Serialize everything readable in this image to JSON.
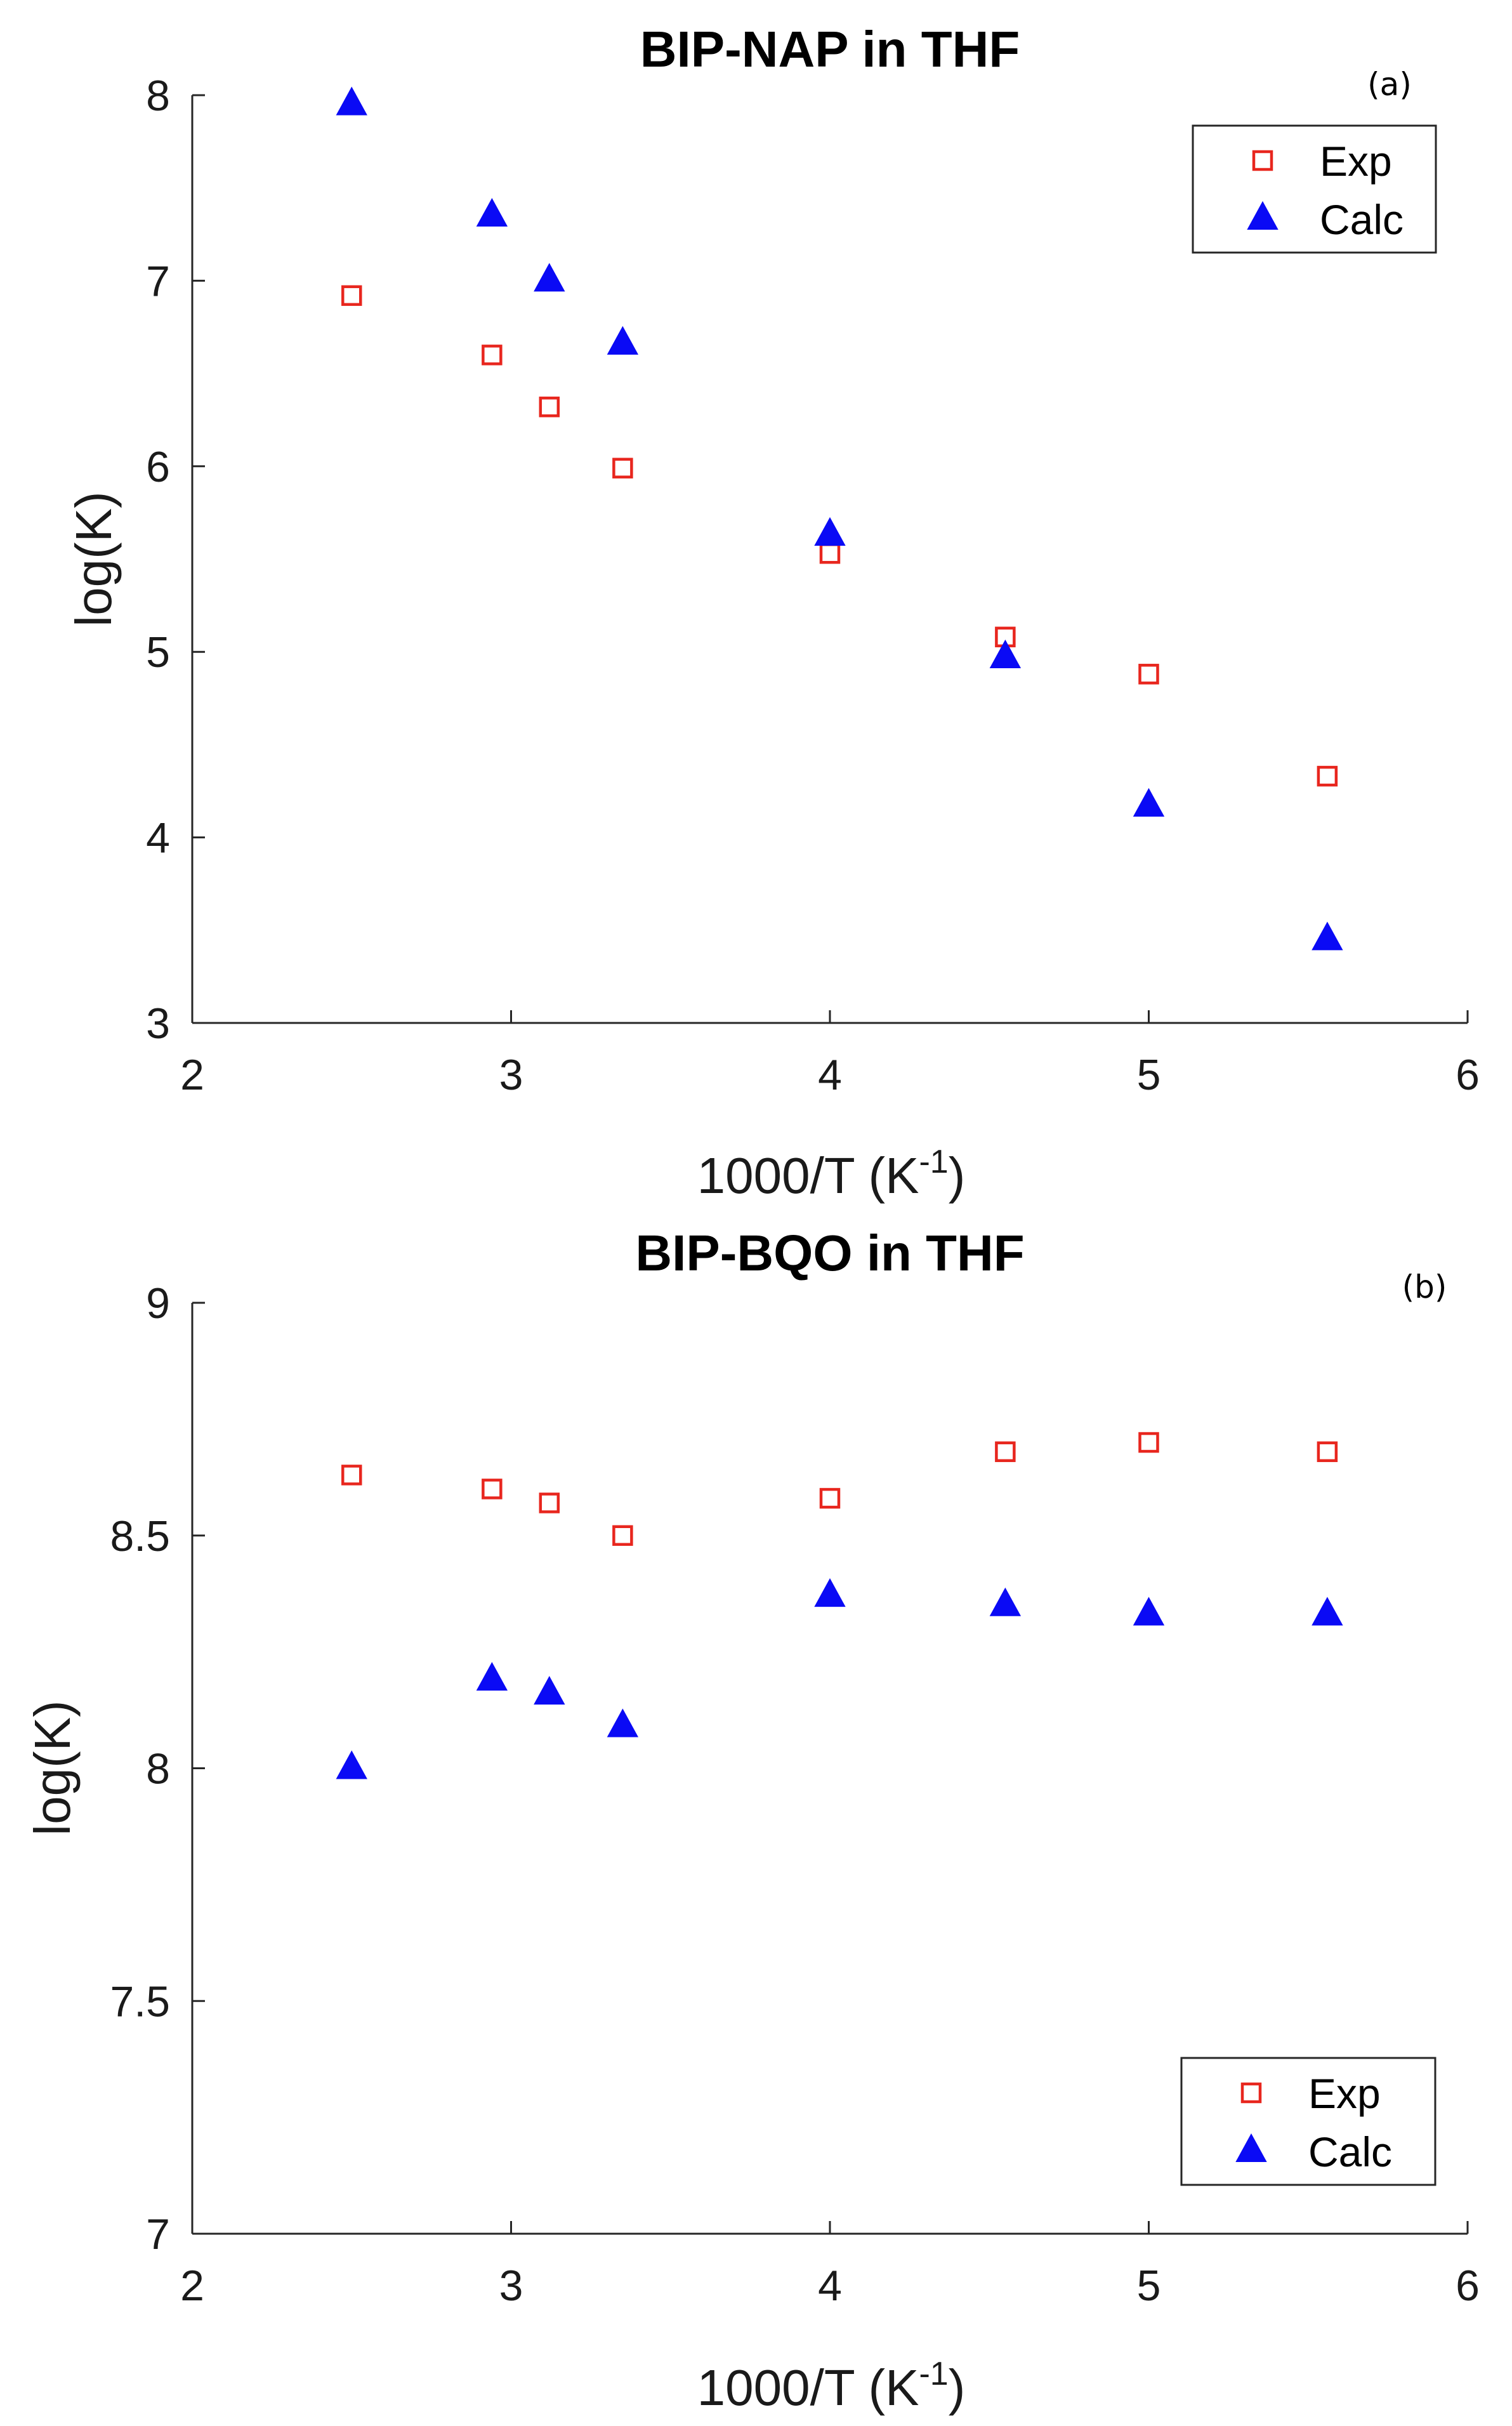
{
  "chart_data": [
    {
      "type": "scatter",
      "panel_label": "(a)",
      "title": "BIP-NAP in THF",
      "xlabel": "1000/T (K",
      "xlabel_sup": "-1",
      "xlabel_end": ")",
      "ylabel": "log(K)",
      "xlim": [
        2,
        6
      ],
      "ylim": [
        3,
        8
      ],
      "xticks": [
        "2",
        "3",
        "4",
        "5",
        "6"
      ],
      "yticks": [
        "3",
        "4",
        "5",
        "6",
        "7",
        "8"
      ],
      "legend_position": "top-right",
      "x": [
        2.5,
        2.94,
        3.12,
        3.35,
        4.0,
        4.55,
        5.0,
        5.56
      ],
      "series": [
        {
          "name": "Exp",
          "marker": "square",
          "color": "#e8261e",
          "values": [
            6.92,
            6.6,
            6.32,
            5.99,
            5.53,
            5.08,
            4.88,
            4.33
          ]
        },
        {
          "name": "Calc",
          "marker": "triangle",
          "color": "#0a0af5",
          "values": [
            7.95,
            7.35,
            7.0,
            6.66,
            5.63,
            4.97,
            4.17,
            3.45
          ]
        }
      ]
    },
    {
      "type": "scatter",
      "panel_label": "(b)",
      "title": "BIP-BQO in THF",
      "xlabel": "1000/T (K",
      "xlabel_sup": "-1",
      "xlabel_end": ")",
      "ylabel": "log(K)",
      "xlim": [
        2,
        6
      ],
      "ylim": [
        7,
        9
      ],
      "xticks": [
        "2",
        "3",
        "4",
        "5",
        "6"
      ],
      "yticks": [
        "7",
        "7.5",
        "8",
        "8.5",
        "9"
      ],
      "legend_position": "bottom-right",
      "x": [
        2.5,
        2.94,
        3.12,
        3.35,
        4.0,
        4.55,
        5.0,
        5.56
      ],
      "series": [
        {
          "name": "Exp",
          "marker": "square",
          "color": "#e8261e",
          "values": [
            8.63,
            8.6,
            8.57,
            8.5,
            8.58,
            8.68,
            8.7,
            8.68
          ]
        },
        {
          "name": "Calc",
          "marker": "triangle",
          "color": "#0a0af5",
          "values": [
            8.0,
            8.19,
            8.16,
            8.09,
            8.37,
            8.35,
            8.33,
            8.33
          ]
        }
      ]
    }
  ]
}
